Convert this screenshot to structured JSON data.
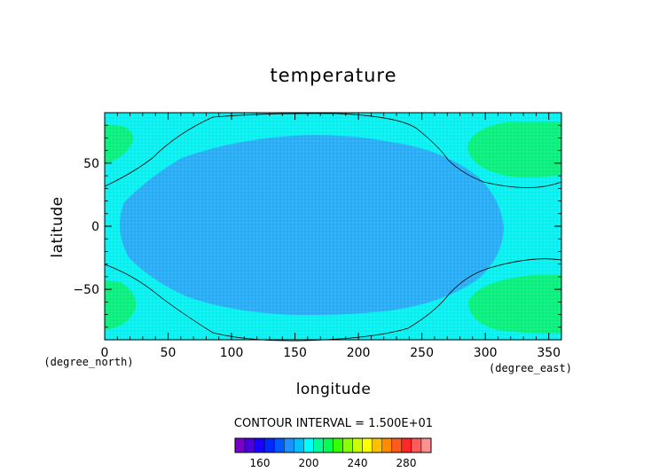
{
  "chart_data": {
    "type": "heatmap",
    "title": "temperature",
    "xlabel": "longitude",
    "ylabel": "latitude",
    "x_units": "(degree_east)",
    "y_units": "(degree_north)",
    "xlim": [
      0,
      360
    ],
    "ylim": [
      -90,
      90
    ],
    "x_ticks": [
      0,
      50,
      100,
      150,
      200,
      250,
      300,
      350
    ],
    "y_ticks": [
      -50,
      0,
      50
    ],
    "contour_interval_text": "CONTOUR INTERVAL = 1.500E+01",
    "colorbar": {
      "tick_labels": [
        "160",
        "200",
        "240",
        "280"
      ],
      "colors": [
        "#7a00c8",
        "#4b00e0",
        "#1a00ff",
        "#0028ff",
        "#0058ff",
        "#1e90ff",
        "#00c0ff",
        "#00ffff",
        "#00ff9a",
        "#00ff50",
        "#38ff00",
        "#8aff00",
        "#ccff00",
        "#ffff00",
        "#ffc000",
        "#ff8c00",
        "#ff5a1e",
        "#ff2828",
        "#ff5a5a",
        "#ff9090"
      ]
    },
    "regions": [
      {
        "name": "center",
        "level": "~200",
        "color": "#22aaf5"
      },
      {
        "name": "background",
        "level": "~215",
        "color": "#00f0f0"
      },
      {
        "name": "corners",
        "level": "~230",
        "color": "#00f07a"
      }
    ]
  }
}
